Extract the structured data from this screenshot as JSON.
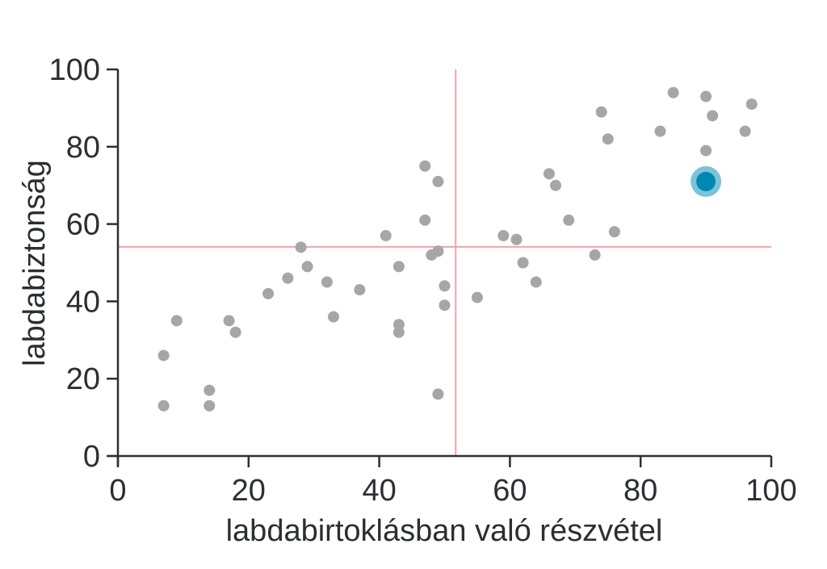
{
  "chart_data": {
    "type": "scatter",
    "title": "",
    "xlabel": "labdabirtoklásban való részvétel",
    "ylabel": "labdabiztonság",
    "xlim": [
      0,
      100
    ],
    "ylim": [
      0,
      100
    ],
    "xticks": [
      0,
      20,
      40,
      60,
      80,
      100
    ],
    "yticks": [
      0,
      20,
      40,
      60,
      80,
      100
    ],
    "grid": false,
    "reference_lines": {
      "x": 51.7,
      "y": 54.1,
      "color": "#f4a3a8"
    },
    "point_color": "#a6a6a6",
    "highlight": {
      "x": 90,
      "y": 71,
      "color": "#0088b5",
      "halo_color": "#7cc3d9"
    },
    "points": [
      {
        "x": 7,
        "y": 26
      },
      {
        "x": 7,
        "y": 13
      },
      {
        "x": 9,
        "y": 35
      },
      {
        "x": 14,
        "y": 17
      },
      {
        "x": 14,
        "y": 13
      },
      {
        "x": 17,
        "y": 35
      },
      {
        "x": 18,
        "y": 32
      },
      {
        "x": 23,
        "y": 42
      },
      {
        "x": 26,
        "y": 46
      },
      {
        "x": 28,
        "y": 54
      },
      {
        "x": 29,
        "y": 49
      },
      {
        "x": 32,
        "y": 45
      },
      {
        "x": 33,
        "y": 36
      },
      {
        "x": 37,
        "y": 43
      },
      {
        "x": 41,
        "y": 57
      },
      {
        "x": 43,
        "y": 49
      },
      {
        "x": 43,
        "y": 34
      },
      {
        "x": 43,
        "y": 32
      },
      {
        "x": 47,
        "y": 75
      },
      {
        "x": 47,
        "y": 61
      },
      {
        "x": 48,
        "y": 52
      },
      {
        "x": 49,
        "y": 71
      },
      {
        "x": 49,
        "y": 53
      },
      {
        "x": 49,
        "y": 16
      },
      {
        "x": 50,
        "y": 44
      },
      {
        "x": 50,
        "y": 39
      },
      {
        "x": 55,
        "y": 41
      },
      {
        "x": 59,
        "y": 57
      },
      {
        "x": 61,
        "y": 56
      },
      {
        "x": 62,
        "y": 50
      },
      {
        "x": 64,
        "y": 45
      },
      {
        "x": 66,
        "y": 73
      },
      {
        "x": 67,
        "y": 70
      },
      {
        "x": 69,
        "y": 61
      },
      {
        "x": 73,
        "y": 52
      },
      {
        "x": 74,
        "y": 89
      },
      {
        "x": 75,
        "y": 82
      },
      {
        "x": 76,
        "y": 58
      },
      {
        "x": 83,
        "y": 84
      },
      {
        "x": 85,
        "y": 94
      },
      {
        "x": 90,
        "y": 93
      },
      {
        "x": 90,
        "y": 79
      },
      {
        "x": 91,
        "y": 88
      },
      {
        "x": 96,
        "y": 84
      },
      {
        "x": 97,
        "y": 91
      }
    ]
  }
}
